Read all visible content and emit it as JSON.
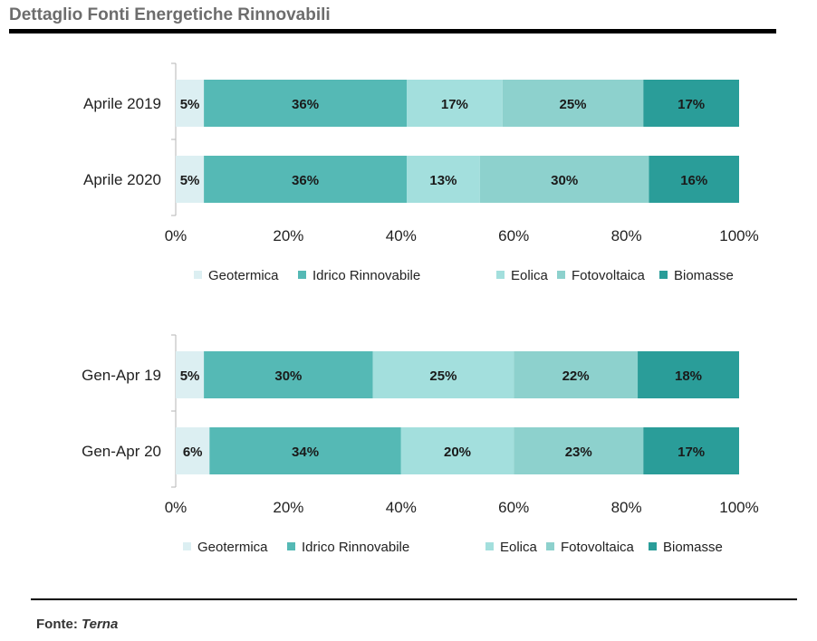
{
  "title": "Dettaglio Fonti Energetiche Rinnovabili",
  "source_label": "Fonte:",
  "source_name": "Terna",
  "colors": {
    "Geotermica": "#dceff2",
    "Idrico Rinnovabile": "#55b9b5",
    "Eolica": "#a3dfdd",
    "Fotovoltaica": "#8dd1cd",
    "Biomasse": "#2a9d99"
  },
  "chart_data": [
    {
      "type": "bar",
      "orientation": "horizontal",
      "stacked": true,
      "categories": [
        "Aprile 2019",
        "Aprile 2020"
      ],
      "series": [
        {
          "name": "Geotermica",
          "values": [
            5,
            5
          ],
          "labels": [
            "5%",
            "5%"
          ]
        },
        {
          "name": "Idrico Rinnovabile",
          "values": [
            36,
            36
          ],
          "labels": [
            "36%",
            "36%"
          ]
        },
        {
          "name": "Eolica",
          "values": [
            17,
            13
          ],
          "labels": [
            "17%",
            "13%"
          ]
        },
        {
          "name": "Fotovoltaica",
          "values": [
            25,
            30
          ],
          "labels": [
            "25%",
            "30%"
          ]
        },
        {
          "name": "Biomasse",
          "values": [
            17,
            16
          ],
          "labels": [
            "17%",
            "16%"
          ]
        }
      ],
      "xlim": [
        0,
        100
      ],
      "xticks": [
        "0%",
        "20%",
        "40%",
        "60%",
        "80%",
        "100%"
      ],
      "legend": "bottom",
      "grid": false
    },
    {
      "type": "bar",
      "orientation": "horizontal",
      "stacked": true,
      "categories": [
        "Gen-Apr 19",
        "Gen-Apr 20"
      ],
      "series": [
        {
          "name": "Geotermica",
          "values": [
            5,
            6
          ],
          "labels": [
            "5%",
            "6%"
          ]
        },
        {
          "name": "Idrico Rinnovabile",
          "values": [
            30,
            34
          ],
          "labels": [
            "30%",
            "34%"
          ]
        },
        {
          "name": "Eolica",
          "values": [
            25,
            20
          ],
          "labels": [
            "25%",
            "20%"
          ]
        },
        {
          "name": "Fotovoltaica",
          "values": [
            22,
            23
          ],
          "labels": [
            "22%",
            "23%"
          ]
        },
        {
          "name": "Biomasse",
          "values": [
            18,
            17
          ],
          "labels": [
            "18%",
            "17%"
          ]
        }
      ],
      "xlim": [
        0,
        100
      ],
      "xticks": [
        "0%",
        "20%",
        "40%",
        "60%",
        "80%",
        "100%"
      ],
      "legend": "bottom",
      "grid": false
    }
  ]
}
